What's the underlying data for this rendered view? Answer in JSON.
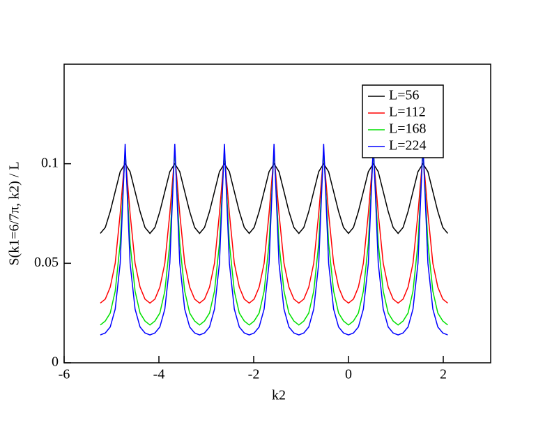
{
  "chart_data": {
    "type": "line",
    "xlabel": "k2",
    "ylabel": "S(k1=6/7π, k2) / L",
    "xlim": [
      -6,
      3
    ],
    "ylim": [
      0,
      0.15
    ],
    "xticks": [
      -6,
      -4,
      -2,
      0,
      2
    ],
    "yticks": [
      0,
      0.05,
      0.1
    ],
    "legend": "upper right",
    "x": [
      -5.236,
      -5.131,
      -5.027,
      -4.922,
      -4.817,
      -4.712,
      -4.608,
      -4.503,
      -4.398,
      -4.294,
      -4.189,
      -4.084,
      -3.98,
      -3.875,
      -3.77,
      -3.665,
      -3.56,
      -3.456,
      -3.351,
      -3.246,
      -3.142,
      -3.037,
      -2.932,
      -2.827,
      -2.723,
      -2.618,
      -2.513,
      -2.409,
      -2.304,
      -2.199,
      -2.094,
      -1.99,
      -1.885,
      -1.78,
      -1.676,
      -1.571,
      -1.466,
      -1.361,
      -1.257,
      -1.152,
      -1.047,
      -0.942,
      -0.838,
      -0.733,
      -0.628,
      -0.524,
      -0.419,
      -0.314,
      -0.209,
      -0.105,
      0,
      0.105,
      0.209,
      0.314,
      0.419,
      0.524,
      0.628,
      0.733,
      0.838,
      0.942,
      1.047,
      1.152,
      1.257,
      1.361,
      1.466,
      1.571,
      1.676,
      1.78,
      1.885,
      1.99,
      2.094
    ],
    "series": [
      {
        "name": "L=56",
        "color": "#000000",
        "values": [
          0.065,
          0.068,
          0.076,
          0.086,
          0.096,
          0.1,
          0.096,
          0.086,
          0.076,
          0.068,
          0.065,
          0.068,
          0.076,
          0.086,
          0.096,
          0.1,
          0.096,
          0.086,
          0.076,
          0.068,
          0.065,
          0.068,
          0.076,
          0.086,
          0.096,
          0.1,
          0.096,
          0.086,
          0.076,
          0.068,
          0.065,
          0.068,
          0.076,
          0.086,
          0.096,
          0.1,
          0.096,
          0.086,
          0.076,
          0.068,
          0.065,
          0.068,
          0.076,
          0.086,
          0.096,
          0.1,
          0.096,
          0.086,
          0.076,
          0.068,
          0.065,
          0.068,
          0.076,
          0.086,
          0.096,
          0.1,
          0.096,
          0.086,
          0.076,
          0.068,
          0.065,
          0.068,
          0.076,
          0.086,
          0.096,
          0.1,
          0.096,
          0.086,
          0.076,
          0.068,
          0.065
        ]
      },
      {
        "name": "L=112",
        "color": "#ff0000",
        "values": [
          0.03,
          0.032,
          0.038,
          0.05,
          0.075,
          0.105,
          0.075,
          0.05,
          0.038,
          0.032,
          0.03,
          0.032,
          0.038,
          0.05,
          0.075,
          0.105,
          0.075,
          0.05,
          0.038,
          0.032,
          0.03,
          0.032,
          0.038,
          0.05,
          0.075,
          0.105,
          0.075,
          0.05,
          0.038,
          0.032,
          0.03,
          0.032,
          0.038,
          0.05,
          0.075,
          0.105,
          0.075,
          0.05,
          0.038,
          0.032,
          0.03,
          0.032,
          0.038,
          0.05,
          0.075,
          0.105,
          0.075,
          0.05,
          0.038,
          0.032,
          0.03,
          0.032,
          0.038,
          0.05,
          0.075,
          0.105,
          0.075,
          0.05,
          0.038,
          0.032,
          0.03,
          0.032,
          0.038,
          0.05,
          0.075,
          0.105,
          0.075,
          0.05,
          0.038,
          0.032,
          0.03
        ]
      },
      {
        "name": "L=168",
        "color": "#00e000",
        "values": [
          0.019,
          0.021,
          0.025,
          0.036,
          0.06,
          0.107,
          0.06,
          0.036,
          0.025,
          0.021,
          0.019,
          0.021,
          0.025,
          0.036,
          0.06,
          0.107,
          0.06,
          0.036,
          0.025,
          0.021,
          0.019,
          0.021,
          0.025,
          0.036,
          0.06,
          0.107,
          0.06,
          0.036,
          0.025,
          0.021,
          0.019,
          0.021,
          0.025,
          0.036,
          0.06,
          0.107,
          0.06,
          0.036,
          0.025,
          0.021,
          0.019,
          0.021,
          0.025,
          0.036,
          0.06,
          0.107,
          0.06,
          0.036,
          0.025,
          0.021,
          0.019,
          0.021,
          0.025,
          0.036,
          0.06,
          0.107,
          0.06,
          0.036,
          0.025,
          0.021,
          0.019,
          0.021,
          0.025,
          0.036,
          0.06,
          0.107,
          0.06,
          0.036,
          0.025,
          0.021,
          0.019
        ]
      },
      {
        "name": "L=224",
        "color": "#0000ff",
        "values": [
          0.014,
          0.015,
          0.018,
          0.027,
          0.05,
          0.11,
          0.05,
          0.027,
          0.018,
          0.015,
          0.014,
          0.015,
          0.018,
          0.027,
          0.05,
          0.11,
          0.05,
          0.027,
          0.018,
          0.015,
          0.014,
          0.015,
          0.018,
          0.027,
          0.05,
          0.11,
          0.05,
          0.027,
          0.018,
          0.015,
          0.014,
          0.015,
          0.018,
          0.027,
          0.05,
          0.11,
          0.05,
          0.027,
          0.018,
          0.015,
          0.014,
          0.015,
          0.018,
          0.027,
          0.05,
          0.11,
          0.05,
          0.027,
          0.018,
          0.015,
          0.014,
          0.015,
          0.018,
          0.027,
          0.05,
          0.11,
          0.05,
          0.027,
          0.018,
          0.015,
          0.014,
          0.015,
          0.018,
          0.027,
          0.05,
          0.11,
          0.05,
          0.027,
          0.018,
          0.015,
          0.014
        ]
      }
    ]
  }
}
